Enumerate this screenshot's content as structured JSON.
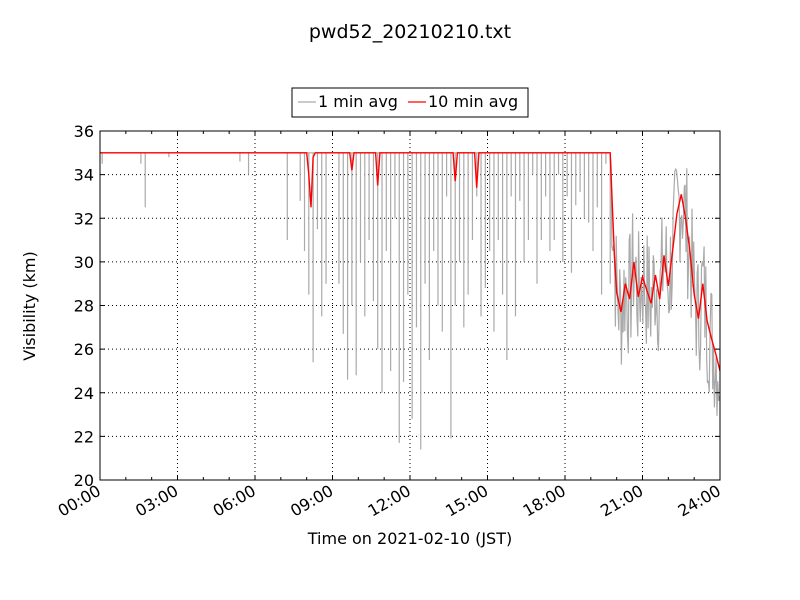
{
  "chart_data": {
    "type": "line",
    "title": "pwd52_20210210.txt",
    "xlabel": "Time on 2021-02-10 (JST)",
    "ylabel": "Visibility (km)",
    "xlim": [
      "00:00",
      "24:00"
    ],
    "ylim": [
      20,
      36
    ],
    "x_ticks": [
      "00:00",
      "03:00",
      "06:00",
      "09:00",
      "12:00",
      "15:00",
      "18:00",
      "21:00",
      "24:00"
    ],
    "y_ticks": [
      20,
      22,
      24,
      26,
      28,
      30,
      32,
      34,
      36
    ],
    "grid": true,
    "legend_position": "top-center",
    "series": [
      {
        "name": "1 min avg",
        "color": "#aaaaaa",
        "baseline": 35,
        "x": [
          "00:05",
          "01:35",
          "01:45",
          "02:40",
          "05:25",
          "05:45",
          "07:15",
          "07:45",
          "07:55",
          "08:05",
          "08:15",
          "08:25",
          "08:35",
          "08:45",
          "09:15",
          "09:25",
          "09:35",
          "09:45",
          "09:55",
          "10:05",
          "10:15",
          "10:25",
          "10:35",
          "10:45",
          "10:55",
          "11:05",
          "11:15",
          "11:25",
          "11:35",
          "11:45",
          "11:55",
          "12:05",
          "12:15",
          "12:25",
          "12:35",
          "12:45",
          "12:55",
          "13:05",
          "13:15",
          "13:25",
          "13:35",
          "13:45",
          "13:55",
          "14:05",
          "14:15",
          "14:25",
          "14:35",
          "14:45",
          "14:55",
          "15:05",
          "15:15",
          "15:25",
          "15:35",
          "15:45",
          "15:55",
          "16:05",
          "16:15",
          "16:25",
          "16:35",
          "16:45",
          "16:55",
          "17:05",
          "17:15",
          "17:25",
          "17:35",
          "17:45",
          "17:55",
          "18:05",
          "18:15",
          "18:25",
          "18:35",
          "18:45",
          "18:55",
          "19:05",
          "19:15",
          "19:25",
          "19:35",
          "19:45"
        ],
        "values": [
          34.5,
          34.5,
          32.5,
          34.8,
          34.6,
          34,
          31,
          32.8,
          30.5,
          28.5,
          25.4,
          31.5,
          27.5,
          29,
          29,
          26.7,
          24.6,
          28,
          24.8,
          30,
          27.5,
          31,
          28.2,
          26,
          24,
          30.5,
          25,
          32,
          21.7,
          24.5,
          28.5,
          22.8,
          27,
          21.4,
          29,
          25.5,
          30.5,
          28,
          26.8,
          33,
          21.9,
          28,
          30,
          27,
          28.5,
          31,
          33,
          27.5,
          28.8,
          30.5,
          26.8,
          31,
          28.5,
          25.5,
          33,
          27.5,
          32.8,
          30,
          31,
          34,
          29,
          31,
          33,
          30.5,
          31,
          34,
          30,
          33,
          29.5,
          32.6,
          33.2,
          32,
          31.8,
          30.5,
          32.5,
          28.5,
          34.5,
          29
        ]
      },
      {
        "name": "10 min avg",
        "color": "#ff0000",
        "x": [
          "00:00",
          "08:00",
          "08:05",
          "08:10",
          "08:15",
          "08:20",
          "08:25",
          "09:40",
          "09:45",
          "09:50",
          "10:40",
          "10:45",
          "10:50",
          "13:40",
          "13:45",
          "13:50",
          "14:30",
          "14:35",
          "14:40",
          "19:45",
          "19:50",
          "19:55",
          "20:00",
          "20:10",
          "20:20",
          "20:30",
          "20:40",
          "20:50",
          "21:00",
          "21:10",
          "21:20",
          "21:30",
          "21:40",
          "21:50",
          "22:00",
          "22:10",
          "22:20",
          "22:30",
          "22:40",
          "22:50",
          "23:00",
          "23:10",
          "23:20",
          "23:30",
          "23:40",
          "23:50",
          "24:00"
        ],
        "values": [
          35,
          35,
          34,
          32.5,
          34.8,
          35,
          35,
          35,
          34.2,
          35,
          35,
          33.5,
          35,
          35,
          33.7,
          35,
          35,
          33.4,
          35,
          35,
          32.5,
          30.2,
          28.6,
          27.7,
          29,
          28.3,
          30,
          28.4,
          29.3,
          28.7,
          28.1,
          29.4,
          28.3,
          30.3,
          28.9,
          30.5,
          32.2,
          33.1,
          32,
          30.5,
          28.5,
          27.4,
          29,
          27.3,
          26.5,
          25.8,
          25
        ]
      }
    ]
  }
}
